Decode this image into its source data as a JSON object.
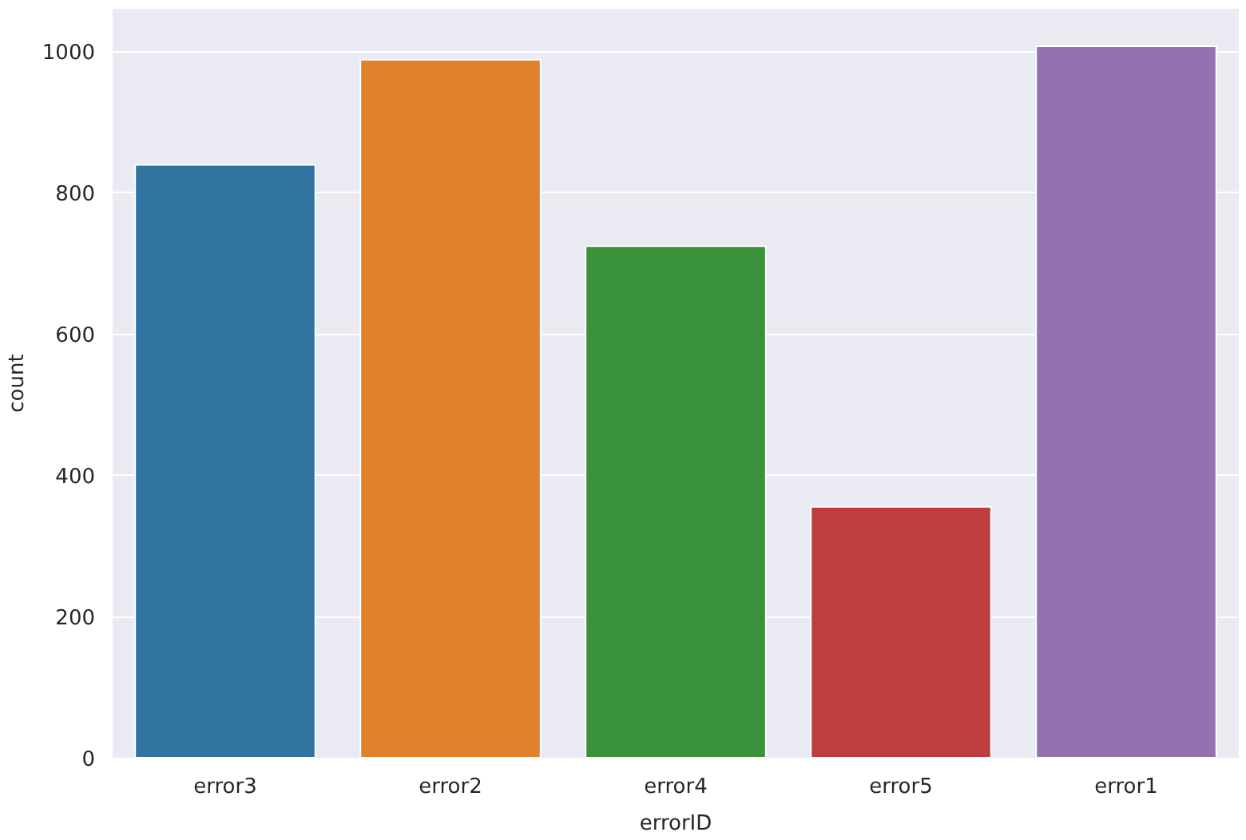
{
  "chart_data": {
    "type": "bar",
    "xlabel": "errorID",
    "ylabel": "count",
    "categories": [
      "error3",
      "error2",
      "error4",
      "error5",
      "error1"
    ],
    "values": [
      839,
      988,
      724,
      355,
      1007
    ],
    "colors": [
      "#3274a1",
      "#e1812c",
      "#3a923a",
      "#c03d3e",
      "#9372b2"
    ],
    "ylim": [
      0,
      1060
    ],
    "yticks": [
      0,
      200,
      400,
      600,
      800,
      1000
    ],
    "grid": "y"
  }
}
